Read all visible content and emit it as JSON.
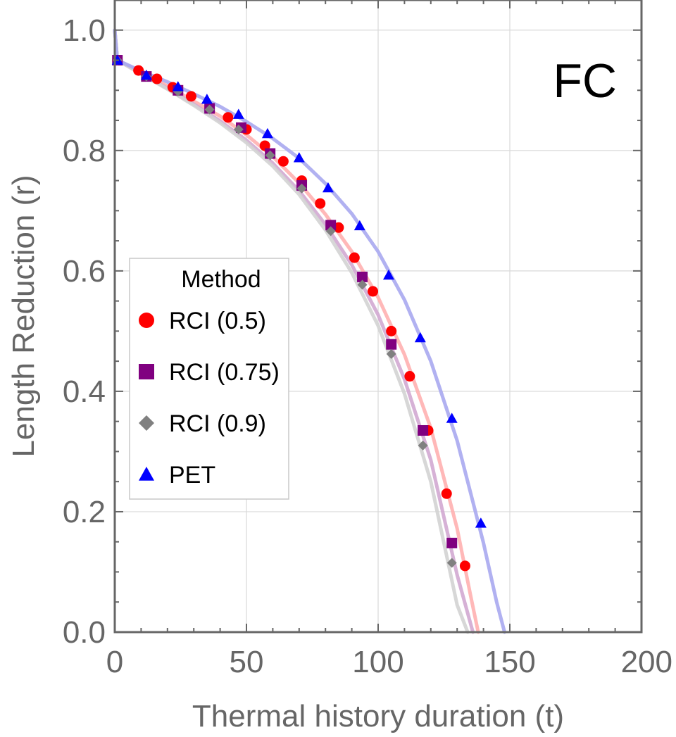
{
  "chart_data": {
    "type": "scatter",
    "panel_label": "FC",
    "xlabel": "Thermal history duration (t)",
    "ylabel": "Length Reduction (r)",
    "xlim": [
      0,
      200
    ],
    "ylim": [
      0,
      1.05
    ],
    "xticks": [
      0,
      50,
      100,
      150,
      200
    ],
    "xtick_labels": [
      "0",
      "50",
      "100",
      "150",
      "200"
    ],
    "yticks": [
      0,
      0.2,
      0.4,
      0.6,
      0.8,
      1.0
    ],
    "ytick_labels": [
      "0.0",
      "0.2",
      "0.4",
      "0.6",
      "0.8",
      "1.0"
    ],
    "grid": true,
    "legend": {
      "title": "Method",
      "placement": "middle-left",
      "entries": [
        "RCI (0.5)",
        "RCI (0.75)",
        "RCI (0.9)",
        "PET"
      ]
    },
    "series": [
      {
        "name": "RCI (0.5)",
        "marker": "circle",
        "color": "#ff0000",
        "fit_color": "#ffb0b0",
        "x": [
          1,
          9,
          16,
          22,
          29,
          43,
          50,
          57,
          64,
          71,
          78,
          85,
          91,
          98,
          105,
          112,
          119,
          126,
          133
        ],
        "y": [
          0.95,
          0.933,
          0.919,
          0.905,
          0.89,
          0.855,
          0.835,
          0.808,
          0.782,
          0.75,
          0.712,
          0.672,
          0.622,
          0.566,
          0.5,
          0.425,
          0.335,
          0.23,
          0.11
        ],
        "fit": {
          "x": [
            0,
            1,
            10,
            20,
            30,
            40,
            50,
            60,
            70,
            80,
            90,
            100,
            110,
            120,
            130,
            135,
            138
          ],
          "y": [
            1.0,
            0.95,
            0.93,
            0.907,
            0.882,
            0.857,
            0.826,
            0.79,
            0.746,
            0.694,
            0.632,
            0.556,
            0.461,
            0.339,
            0.172,
            0.063,
            0.0
          ]
        }
      },
      {
        "name": "RCI (0.75)",
        "marker": "square",
        "color": "#800080",
        "fit_color": "#d2a8d2",
        "x": [
          1,
          12,
          24,
          36,
          48,
          59,
          71,
          82,
          94,
          105,
          117,
          128
        ],
        "y": [
          0.95,
          0.923,
          0.9,
          0.87,
          0.838,
          0.795,
          0.742,
          0.676,
          0.59,
          0.478,
          0.335,
          0.148
        ],
        "fit": {
          "x": [
            0,
            1,
            10,
            20,
            30,
            40,
            50,
            60,
            70,
            80,
            90,
            100,
            110,
            120,
            130,
            136
          ],
          "y": [
            1.0,
            0.95,
            0.928,
            0.903,
            0.877,
            0.849,
            0.817,
            0.779,
            0.733,
            0.677,
            0.61,
            0.527,
            0.42,
            0.286,
            0.095,
            0.0
          ]
        }
      },
      {
        "name": "RCI (0.9)",
        "marker": "diamond",
        "color": "#808080",
        "fit_color": "#d3d3d3",
        "x": [
          1,
          12,
          24,
          36,
          47,
          59,
          71,
          82,
          94,
          105,
          117,
          128
        ],
        "y": [
          0.95,
          0.923,
          0.898,
          0.868,
          0.835,
          0.792,
          0.737,
          0.666,
          0.577,
          0.462,
          0.31,
          0.115
        ],
        "fit": {
          "x": [
            0,
            1,
            10,
            20,
            30,
            40,
            50,
            60,
            70,
            80,
            90,
            100,
            110,
            120,
            130,
            134
          ],
          "y": [
            1.0,
            0.95,
            0.927,
            0.902,
            0.875,
            0.846,
            0.813,
            0.774,
            0.727,
            0.668,
            0.597,
            0.509,
            0.396,
            0.25,
            0.045,
            0.0
          ]
        }
      },
      {
        "name": "PET",
        "marker": "triangle",
        "color": "#0000ff",
        "fit_color": "#a8a8f0",
        "x": [
          1,
          12,
          24,
          35,
          47,
          58,
          70,
          81,
          93,
          104,
          116,
          128,
          139
        ],
        "y": [
          0.95,
          0.925,
          0.906,
          0.885,
          0.86,
          0.828,
          0.788,
          0.738,
          0.675,
          0.593,
          0.489,
          0.355,
          0.181
        ],
        "fit": {
          "x": [
            0,
            1,
            10,
            20,
            30,
            40,
            50,
            60,
            70,
            80,
            90,
            100,
            110,
            120,
            130,
            140,
            145,
            148
          ],
          "y": [
            1.0,
            0.95,
            0.932,
            0.914,
            0.894,
            0.873,
            0.848,
            0.82,
            0.787,
            0.745,
            0.695,
            0.632,
            0.552,
            0.45,
            0.318,
            0.148,
            0.05,
            0.0
          ]
        }
      }
    ]
  }
}
